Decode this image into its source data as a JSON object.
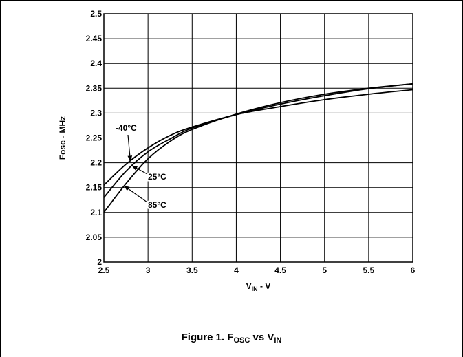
{
  "caption": {
    "prefix": "Figure 1. F",
    "sub1": "OSC",
    "middle": " vs V",
    "sub2": "IN"
  },
  "chart_data": {
    "type": "line",
    "title": "",
    "ylabel": "Fosc - MHz",
    "xlabel": {
      "main": "V",
      "sub": "IN",
      "suffix": " - V"
    },
    "xlim": [
      2.5,
      6
    ],
    "ylim": [
      2.0,
      2.5
    ],
    "xticks": [
      2.5,
      3,
      3.5,
      4,
      4.5,
      5,
      5.5,
      6
    ],
    "xtick_labels": [
      "2.5",
      "3",
      "3.5",
      "4",
      "4.5",
      "5",
      "5.5",
      "6"
    ],
    "yticks": [
      2.0,
      2.05,
      2.1,
      2.15,
      2.2,
      2.25,
      2.3,
      2.35,
      2.4,
      2.45,
      2.5
    ],
    "ytick_labels": [
      "2",
      "2.05",
      "2.1",
      "2.15",
      "2.2",
      "2.25",
      "2.3",
      "2.35",
      "2.4",
      "2.45",
      "2.5"
    ],
    "grid": true,
    "line_color": "#000000",
    "series": [
      {
        "name": "-40°C",
        "x": [
          2.5,
          2.75,
          3.0,
          3.25,
          3.5,
          4.0,
          4.5,
          5.0,
          5.5,
          6.0
        ],
        "y": [
          2.155,
          2.197,
          2.23,
          2.255,
          2.272,
          2.297,
          2.313,
          2.327,
          2.338,
          2.347
        ]
      },
      {
        "name": "25°C",
        "x": [
          2.5,
          2.75,
          3.0,
          3.25,
          3.5,
          4.0,
          4.5,
          5.0,
          5.5,
          6.0
        ],
        "y": [
          2.13,
          2.183,
          2.222,
          2.248,
          2.27,
          2.297,
          2.318,
          2.335,
          2.349,
          2.359
        ]
      },
      {
        "name": "85°C",
        "x": [
          2.5,
          2.75,
          3.0,
          3.25,
          3.5,
          4.0,
          4.5,
          5.0,
          5.5,
          6.0
        ],
        "y": [
          2.1,
          2.158,
          2.208,
          2.243,
          2.267,
          2.298,
          2.321,
          2.338,
          2.35,
          2.359
        ]
      }
    ],
    "annotations": [
      {
        "text": "-40°C",
        "series": "-40°C",
        "x": 2.8
      },
      {
        "text": "25°C",
        "series": "25°C",
        "x": 2.82
      },
      {
        "text": "85°C",
        "series": "85°C",
        "x": 2.73
      }
    ]
  }
}
